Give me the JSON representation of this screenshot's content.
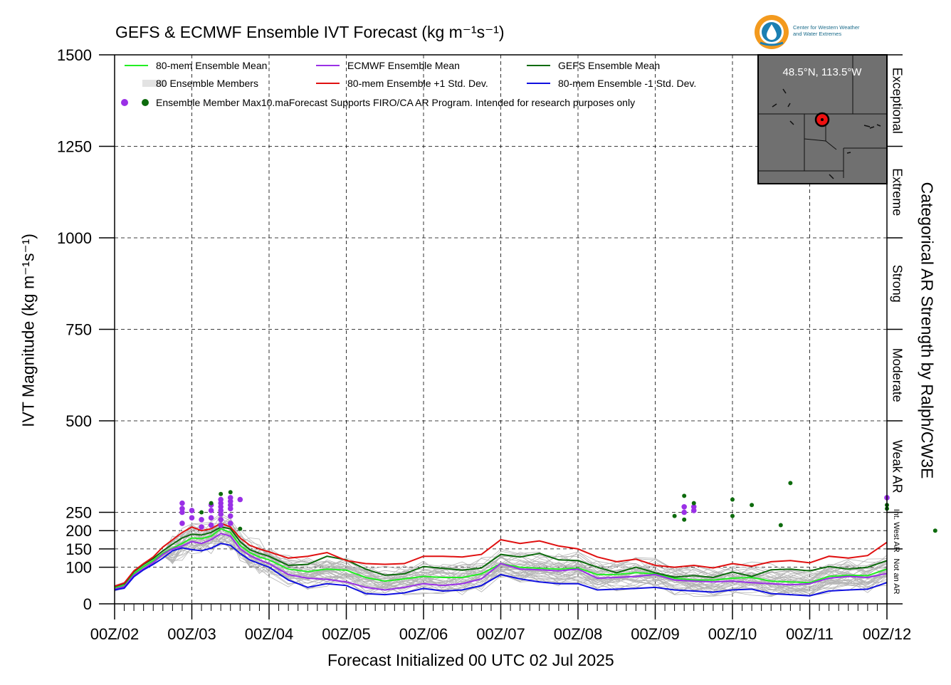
{
  "title": "GEFS & ECMWF Ensemble IVT Forecast (kg m⁻¹s⁻¹)",
  "xlabel": "Forecast Initialized 00 UTC 02 Jul 2025",
  "ylabel": "IVT Magnitude (kg m⁻¹s⁻¹)",
  "right_label": "Categorical AR Strength by Ralph/CW3E",
  "location": "48.5°N, 113.5°W",
  "logo": {
    "line1": "Center for Western Weather",
    "line2": "and Water Extremes"
  },
  "colors": {
    "mean80": "#22ee22",
    "ecmwf": "#9a30e6",
    "gefs": "#0d6b0d",
    "plus": "#e01010",
    "minus": "#1010e0",
    "members": "#b4b4b4"
  },
  "legend": [
    {
      "label": "80-mem Ensemble Mean",
      "color": "#22ee22",
      "style": "line"
    },
    {
      "label": "ECMWF Ensemble Mean",
      "color": "#9a30e6",
      "style": "line"
    },
    {
      "label": "GEFS Ensemble Mean",
      "color": "#0d6b0d",
      "style": "line"
    },
    {
      "label": "80 Ensemble Members",
      "color": "#b4b4b4",
      "style": "multiline"
    },
    {
      "label": "80-mem Ensemble +1 Std. Dev.",
      "color": "#e01010",
      "style": "line"
    },
    {
      "label": "80-mem Ensemble -1 Std. Dev.",
      "color": "#1010e0",
      "style": "line"
    },
    {
      "label": "Ensemble Member Max",
      "color": "#9a30e6",
      "style": "dots"
    }
  ],
  "legend_note": "10.maForecast Supports FIRO/CA AR Program. Intended for research purposes only",
  "categories_right": [
    {
      "label": "Exceptional",
      "low": 1250,
      "high": 1500
    },
    {
      "label": "Extreme",
      "low": 1000,
      "high": 1250
    },
    {
      "label": "Strong",
      "low": 750,
      "high": 1000
    },
    {
      "label": "Moderate",
      "low": 500,
      "high": 750
    },
    {
      "label": "Weak AR",
      "low": 250,
      "high": 500
    },
    {
      "label": "Int. West AR",
      "low": 150,
      "high": 250
    },
    {
      "label": "Not an AR",
      "low": 0,
      "high": 150
    }
  ],
  "chart_data": {
    "type": "line",
    "title": "GEFS & ECMWF Ensemble IVT Forecast (kg m⁻¹s⁻¹)",
    "xlabel": "Forecast Initialized 00 UTC 02 Jul 2025",
    "ylabel": "IVT Magnitude (kg m⁻¹s⁻¹)",
    "x_ticks": [
      "00Z/02",
      "00Z/03",
      "00Z/04",
      "00Z/05",
      "00Z/06",
      "00Z/07",
      "00Z/08",
      "00Z/09",
      "00Z/10",
      "00Z/11",
      "00Z/12"
    ],
    "xlim": [
      0,
      10
    ],
    "ylim": [
      0,
      1500
    ],
    "y_ticks": [
      0,
      100,
      150,
      200,
      250,
      500,
      750,
      1000,
      1250,
      1500
    ],
    "grid": true,
    "legend_position": "top-left",
    "series": [
      {
        "name": "80-mem Ensemble Mean",
        "color": "#22ee22",
        "x": [
          0,
          0.125,
          0.25,
          0.375,
          0.5,
          0.625,
          0.75,
          0.875,
          1,
          1.125,
          1.25,
          1.375,
          1.5,
          1.625,
          1.75,
          1.875,
          2,
          2.25,
          2.5,
          2.75,
          3,
          3.25,
          3.5,
          3.75,
          4,
          4.25,
          4.5,
          4.75,
          5,
          5.25,
          5.5,
          5.75,
          6,
          6.25,
          6.5,
          6.75,
          7,
          7.25,
          7.5,
          7.75,
          8,
          8.25,
          8.5,
          8.75,
          9,
          9.25,
          9.5,
          9.75,
          10
        ],
        "y": [
          43,
          50,
          82,
          102,
          118,
          138,
          152,
          165,
          180,
          178,
          185,
          205,
          195,
          160,
          140,
          128,
          120,
          95,
          88,
          95,
          92,
          72,
          62,
          68,
          75,
          72,
          72,
          82,
          110,
          100,
          97,
          95,
          98,
          80,
          80,
          85,
          82,
          70,
          65,
          65,
          70,
          72,
          62,
          60,
          58,
          75,
          78,
          77,
          95
        ]
      },
      {
        "name": "ECMWF Ensemble Mean",
        "color": "#9a30e6",
        "x": [
          0,
          0.125,
          0.25,
          0.375,
          0.5,
          0.625,
          0.75,
          0.875,
          1,
          1.125,
          1.25,
          1.375,
          1.5,
          1.625,
          1.75,
          1.875,
          2,
          2.25,
          2.5,
          2.75,
          3,
          3.25,
          3.5,
          3.75,
          4,
          4.25,
          4.5,
          4.75,
          5,
          5.25,
          5.5,
          5.75,
          6,
          6.25,
          6.5,
          6.75,
          7,
          7.25,
          7.5,
          7.75,
          8,
          8.25,
          8.5,
          8.75,
          9,
          9.25,
          9.5,
          9.75,
          10
        ],
        "y": [
          40,
          47,
          78,
          96,
          113,
          135,
          150,
          158,
          170,
          165,
          175,
          192,
          185,
          150,
          132,
          120,
          110,
          80,
          70,
          67,
          60,
          45,
          38,
          45,
          55,
          50,
          55,
          68,
          110,
          95,
          93,
          90,
          95,
          70,
          72,
          75,
          80,
          65,
          62,
          60,
          62,
          58,
          55,
          52,
          55,
          70,
          75,
          72,
          83
        ]
      },
      {
        "name": "GEFS Ensemble Mean",
        "color": "#0d6b0d",
        "x": [
          0,
          0.125,
          0.25,
          0.375,
          0.5,
          0.625,
          0.75,
          0.875,
          1,
          1.125,
          1.25,
          1.375,
          1.5,
          1.625,
          1.75,
          1.875,
          2,
          2.25,
          2.5,
          2.75,
          3,
          3.25,
          3.5,
          3.75,
          4,
          4.25,
          4.5,
          4.75,
          5,
          5.25,
          5.5,
          5.75,
          6,
          6.25,
          6.5,
          6.75,
          7,
          7.25,
          7.5,
          7.75,
          8,
          8.25,
          8.5,
          8.75,
          9,
          9.25,
          9.5,
          9.75,
          10
        ],
        "y": [
          47,
          55,
          88,
          108,
          124,
          145,
          163,
          180,
          190,
          188,
          195,
          210,
          205,
          170,
          148,
          138,
          130,
          105,
          108,
          130,
          120,
          95,
          78,
          82,
          102,
          97,
          92,
          98,
          135,
          128,
          138,
          120,
          118,
          100,
          85,
          100,
          85,
          73,
          77,
          72,
          87,
          75,
          93,
          95,
          90,
          102,
          95,
          100,
          118
        ]
      },
      {
        "name": "80-mem Ensemble +1 Std. Dev.",
        "color": "#e01010",
        "x": [
          0,
          0.125,
          0.25,
          0.375,
          0.5,
          0.625,
          0.75,
          0.875,
          1,
          1.125,
          1.25,
          1.375,
          1.5,
          1.625,
          1.75,
          1.875,
          2,
          2.25,
          2.5,
          2.75,
          3,
          3.25,
          3.5,
          3.75,
          4,
          4.25,
          4.5,
          4.75,
          5,
          5.25,
          5.5,
          5.75,
          6,
          6.25,
          6.5,
          6.75,
          7,
          7.25,
          7.5,
          7.75,
          8,
          8.25,
          8.5,
          8.75,
          9,
          9.25,
          9.5,
          9.75,
          10
        ],
        "y": [
          48,
          57,
          90,
          110,
          128,
          155,
          175,
          195,
          210,
          200,
          205,
          220,
          210,
          180,
          160,
          150,
          142,
          125,
          130,
          140,
          118,
          110,
          108,
          110,
          130,
          130,
          128,
          135,
          175,
          165,
          172,
          158,
          150,
          128,
          115,
          122,
          105,
          100,
          105,
          98,
          110,
          103,
          115,
          118,
          112,
          130,
          125,
          132,
          168
        ]
      },
      {
        "name": "80-mem Ensemble -1 Std. Dev.",
        "color": "#1010e0",
        "x": [
          0,
          0.125,
          0.25,
          0.375,
          0.5,
          0.625,
          0.75,
          0.875,
          1,
          1.125,
          1.25,
          1.375,
          1.5,
          1.625,
          1.75,
          1.875,
          2,
          2.25,
          2.5,
          2.75,
          3,
          3.25,
          3.5,
          3.75,
          4,
          4.25,
          4.5,
          4.75,
          5,
          5.25,
          5.5,
          5.75,
          6,
          6.25,
          6.5,
          6.75,
          7,
          7.25,
          7.5,
          7.75,
          8,
          8.25,
          8.5,
          8.75,
          9,
          9.25,
          9.5,
          9.75,
          10
        ],
        "y": [
          38,
          43,
          74,
          93,
          108,
          125,
          145,
          153,
          148,
          145,
          152,
          165,
          160,
          138,
          120,
          110,
          100,
          65,
          45,
          55,
          50,
          28,
          25,
          30,
          42,
          35,
          38,
          50,
          80,
          68,
          60,
          55,
          55,
          38,
          40,
          42,
          45,
          38,
          35,
          32,
          38,
          40,
          28,
          25,
          22,
          35,
          38,
          40,
          58
        ]
      }
    ],
    "max_points": [
      {
        "name": "ECMWF Ensemble Member Max",
        "color": "#9a30e6",
        "x": [
          0.875,
          0.875,
          0.875,
          0.875,
          1,
          1,
          1.125,
          1.125,
          1.25,
          1.25,
          1.25,
          1.25,
          1.375,
          1.375,
          1.375,
          1.375,
          1.375,
          1.375,
          1.375,
          1.5,
          1.5,
          1.5,
          1.5,
          1.5,
          1.5,
          1.625,
          7.375,
          7.375,
          7.5,
          7.5,
          10
        ],
        "y": [
          220,
          250,
          260,
          275,
          235,
          255,
          210,
          230,
          215,
          235,
          255,
          270,
          215,
          230,
          245,
          255,
          265,
          275,
          285,
          220,
          240,
          260,
          270,
          280,
          290,
          285,
          250,
          265,
          255,
          265,
          290
        ]
      },
      {
        "name": "GEFS Ensemble Member Max",
        "color": "#0d6b0d",
        "x": [
          1.125,
          1.25,
          1.375,
          1.5,
          1.625,
          7.25,
          7.375,
          7.375,
          7.5,
          8,
          8,
          8.25,
          8.625,
          8.75,
          10,
          10.625,
          10
        ],
        "y": [
          250,
          275,
          300,
          305,
          205,
          240,
          295,
          230,
          275,
          240,
          285,
          270,
          215,
          330,
          270,
          200,
          260
        ]
      }
    ]
  }
}
